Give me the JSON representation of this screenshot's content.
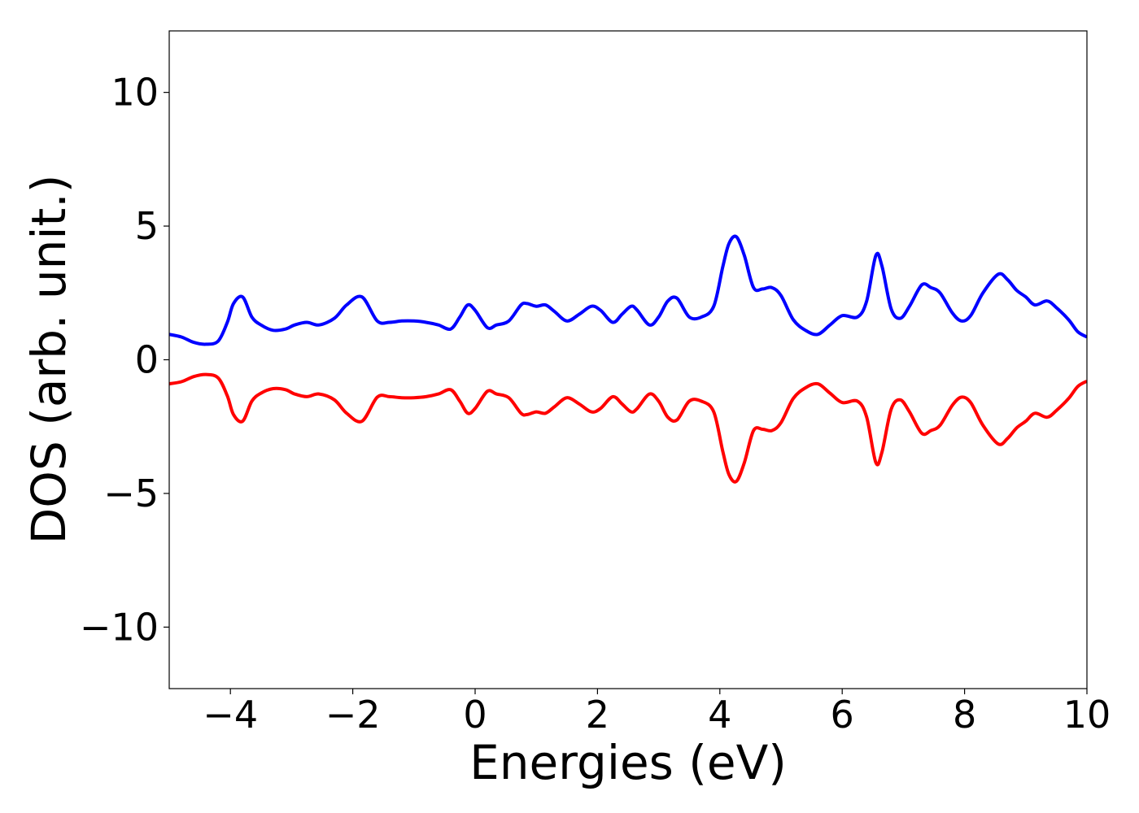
{
  "chart_data": {
    "type": "line",
    "xlabel": "Energies (eV)",
    "ylabel": "DOS (arb. unit.)",
    "xlim": [
      -5,
      10
    ],
    "ylim": [
      -12.3,
      12.3
    ],
    "grid": false,
    "x_ticks": [
      -4,
      -2,
      0,
      2,
      4,
      6,
      8,
      10
    ],
    "x_tick_labels": [
      "−4",
      "−2",
      "0",
      "2",
      "4",
      "6",
      "8",
      "10"
    ],
    "y_ticks": [
      10,
      5,
      0,
      -5,
      -10
    ],
    "y_tick_labels": [
      "10",
      "5",
      "0",
      "−5",
      "−10"
    ],
    "series": [
      {
        "color": "#0000ff",
        "x": [
          -5.0,
          -4.8,
          -4.6,
          -4.4,
          -4.2,
          -4.05,
          -3.95,
          -3.8,
          -3.65,
          -3.5,
          -3.3,
          -3.1,
          -2.95,
          -2.75,
          -2.55,
          -2.3,
          -2.1,
          -1.85,
          -1.6,
          -1.4,
          -1.2,
          -1.0,
          -0.8,
          -0.6,
          -0.4,
          -0.25,
          -0.12,
          0.0,
          0.2,
          0.35,
          0.55,
          0.75,
          0.85,
          1.0,
          1.15,
          1.3,
          1.5,
          1.7,
          1.9,
          2.05,
          2.25,
          2.4,
          2.55,
          2.65,
          2.85,
          3.0,
          3.15,
          3.3,
          3.5,
          3.7,
          3.9,
          4.05,
          4.15,
          4.27,
          4.4,
          4.55,
          4.7,
          4.85,
          5.0,
          5.2,
          5.4,
          5.6,
          5.8,
          6.0,
          6.25,
          6.4,
          6.55,
          6.65,
          6.8,
          6.95,
          7.1,
          7.3,
          7.45,
          7.6,
          7.8,
          7.95,
          8.1,
          8.3,
          8.55,
          8.7,
          8.85,
          9.0,
          9.15,
          9.35,
          9.5,
          9.7,
          9.85,
          10.0
        ],
        "y": [
          0.95,
          0.85,
          0.65,
          0.58,
          0.7,
          1.4,
          2.1,
          2.35,
          1.6,
          1.3,
          1.1,
          1.15,
          1.3,
          1.4,
          1.3,
          1.55,
          2.05,
          2.35,
          1.45,
          1.4,
          1.45,
          1.45,
          1.4,
          1.3,
          1.15,
          1.6,
          2.05,
          1.85,
          1.2,
          1.3,
          1.45,
          2.05,
          2.1,
          2.0,
          2.05,
          1.8,
          1.45,
          1.7,
          2.0,
          1.85,
          1.4,
          1.7,
          2.0,
          1.85,
          1.3,
          1.6,
          2.2,
          2.3,
          1.6,
          1.6,
          2.0,
          3.5,
          4.35,
          4.6,
          3.9,
          2.7,
          2.65,
          2.7,
          2.4,
          1.5,
          1.1,
          0.95,
          1.3,
          1.65,
          1.6,
          2.2,
          3.9,
          3.5,
          1.9,
          1.55,
          2.0,
          2.8,
          2.7,
          2.5,
          1.75,
          1.45,
          1.65,
          2.5,
          3.2,
          3.0,
          2.6,
          2.35,
          2.05,
          2.2,
          1.95,
          1.5,
          1.05,
          0.85
        ]
      },
      {
        "color": "#ff0000",
        "x": [
          -5.0,
          -4.8,
          -4.6,
          -4.4,
          -4.2,
          -4.05,
          -3.95,
          -3.8,
          -3.65,
          -3.5,
          -3.3,
          -3.1,
          -2.95,
          -2.75,
          -2.55,
          -2.3,
          -2.1,
          -1.85,
          -1.6,
          -1.4,
          -1.2,
          -1.0,
          -0.8,
          -0.6,
          -0.4,
          -0.25,
          -0.12,
          0.0,
          0.2,
          0.35,
          0.55,
          0.75,
          0.85,
          1.0,
          1.15,
          1.3,
          1.5,
          1.7,
          1.9,
          2.05,
          2.25,
          2.4,
          2.55,
          2.65,
          2.85,
          3.0,
          3.15,
          3.3,
          3.5,
          3.7,
          3.9,
          4.05,
          4.15,
          4.27,
          4.4,
          4.55,
          4.7,
          4.85,
          5.0,
          5.2,
          5.4,
          5.6,
          5.8,
          6.0,
          6.25,
          6.4,
          6.55,
          6.65,
          6.8,
          6.95,
          7.1,
          7.3,
          7.45,
          7.6,
          7.8,
          7.95,
          8.1,
          8.3,
          8.55,
          8.7,
          8.85,
          9.0,
          9.15,
          9.35,
          9.5,
          9.7,
          9.85,
          10.0
        ],
        "y": [
          -0.9,
          -0.82,
          -0.63,
          -0.55,
          -0.68,
          -1.35,
          -2.05,
          -2.3,
          -1.55,
          -1.25,
          -1.08,
          -1.12,
          -1.28,
          -1.38,
          -1.28,
          -1.5,
          -2.0,
          -2.3,
          -1.4,
          -1.38,
          -1.42,
          -1.42,
          -1.38,
          -1.28,
          -1.12,
          -1.55,
          -2.0,
          -1.82,
          -1.18,
          -1.28,
          -1.42,
          -2.0,
          -2.05,
          -1.95,
          -2.0,
          -1.75,
          -1.42,
          -1.65,
          -1.95,
          -1.82,
          -1.38,
          -1.65,
          -1.95,
          -1.82,
          -1.28,
          -1.55,
          -2.15,
          -2.25,
          -1.55,
          -1.55,
          -1.95,
          -3.45,
          -4.3,
          -4.55,
          -3.85,
          -2.65,
          -2.6,
          -2.65,
          -2.35,
          -1.45,
          -1.05,
          -0.9,
          -1.25,
          -1.6,
          -1.55,
          -2.15,
          -3.85,
          -3.45,
          -1.85,
          -1.5,
          -1.95,
          -2.75,
          -2.65,
          -2.45,
          -1.7,
          -1.4,
          -1.6,
          -2.45,
          -3.15,
          -2.95,
          -2.55,
          -2.3,
          -2.0,
          -2.15,
          -1.9,
          -1.45,
          -1.0,
          -0.8
        ]
      }
    ]
  }
}
